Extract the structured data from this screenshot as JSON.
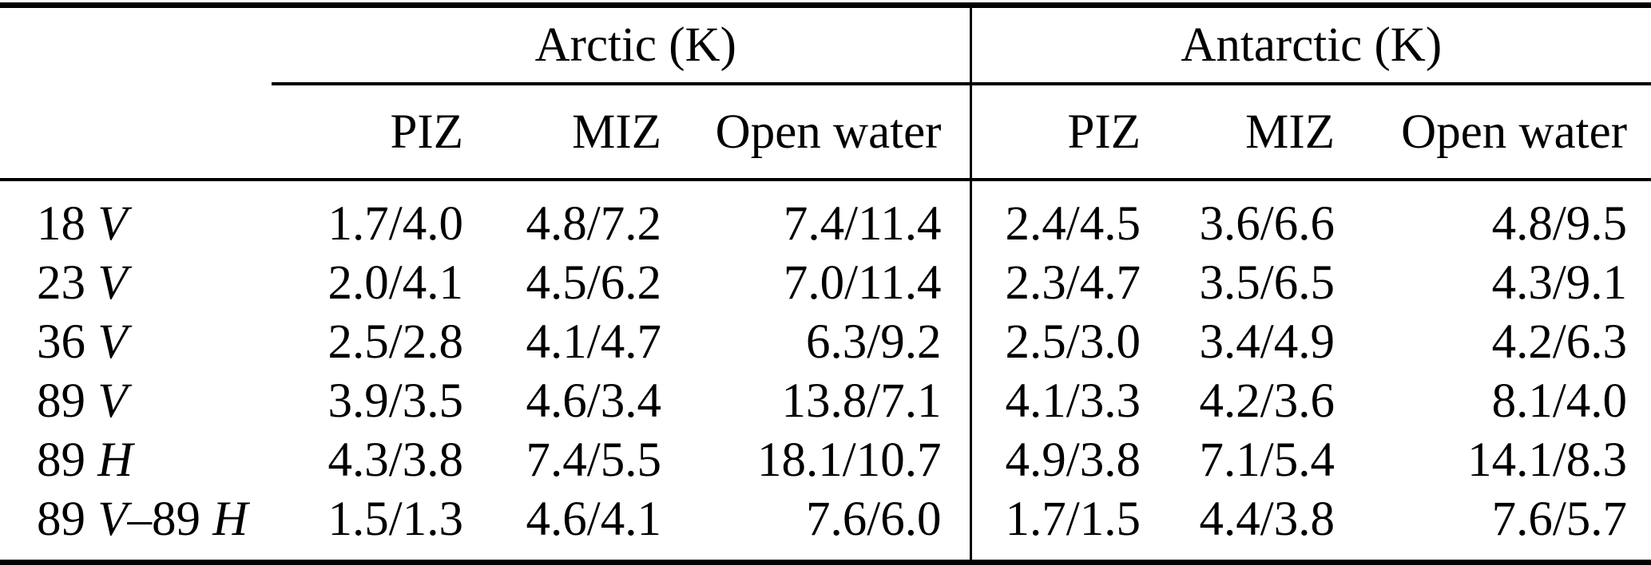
{
  "table": {
    "groups": [
      "Arctic (K)",
      "Antarctic (K)"
    ],
    "sub_headers": [
      "PIZ",
      "MIZ",
      "Open water",
      "PIZ",
      "MIZ",
      "Open water"
    ],
    "rows": [
      {
        "label": {
          "freq1": "18 ",
          "pol1": "V",
          "sep": "",
          "freq2": "",
          "pol2": ""
        },
        "values": [
          "1.7/4.0",
          "4.8/7.2",
          "7.4/11.4",
          "2.4/4.5",
          "3.6/6.6",
          "4.8/9.5"
        ]
      },
      {
        "label": {
          "freq1": "23 ",
          "pol1": "V",
          "sep": "",
          "freq2": "",
          "pol2": ""
        },
        "values": [
          "2.0/4.1",
          "4.5/6.2",
          "7.0/11.4",
          "2.3/4.7",
          "3.5/6.5",
          "4.3/9.1"
        ]
      },
      {
        "label": {
          "freq1": "36 ",
          "pol1": "V",
          "sep": "",
          "freq2": "",
          "pol2": ""
        },
        "values": [
          "2.5/2.8",
          "4.1/4.7",
          "6.3/9.2",
          "2.5/3.0",
          "3.4/4.9",
          "4.2/6.3"
        ]
      },
      {
        "label": {
          "freq1": "89 ",
          "pol1": "V",
          "sep": "",
          "freq2": "",
          "pol2": ""
        },
        "values": [
          "3.9/3.5",
          "4.6/3.4",
          "13.8/7.1",
          "4.1/3.3",
          "4.2/3.6",
          "8.1/4.0"
        ]
      },
      {
        "label": {
          "freq1": "89 ",
          "pol1": "H",
          "sep": "",
          "freq2": "",
          "pol2": ""
        },
        "values": [
          "4.3/3.8",
          "7.4/5.5",
          "18.1/10.7",
          "4.9/3.8",
          "7.1/5.4",
          "14.1/8.3"
        ]
      },
      {
        "label": {
          "freq1": "89 ",
          "pol1": "V",
          "sep": "–",
          "freq2": "89 ",
          "pol2": "H"
        },
        "values": [
          "1.5/1.3",
          "4.6/4.1",
          "7.6/6.0",
          "1.7/1.5",
          "4.4/3.8",
          "7.6/5.7"
        ]
      }
    ]
  }
}
